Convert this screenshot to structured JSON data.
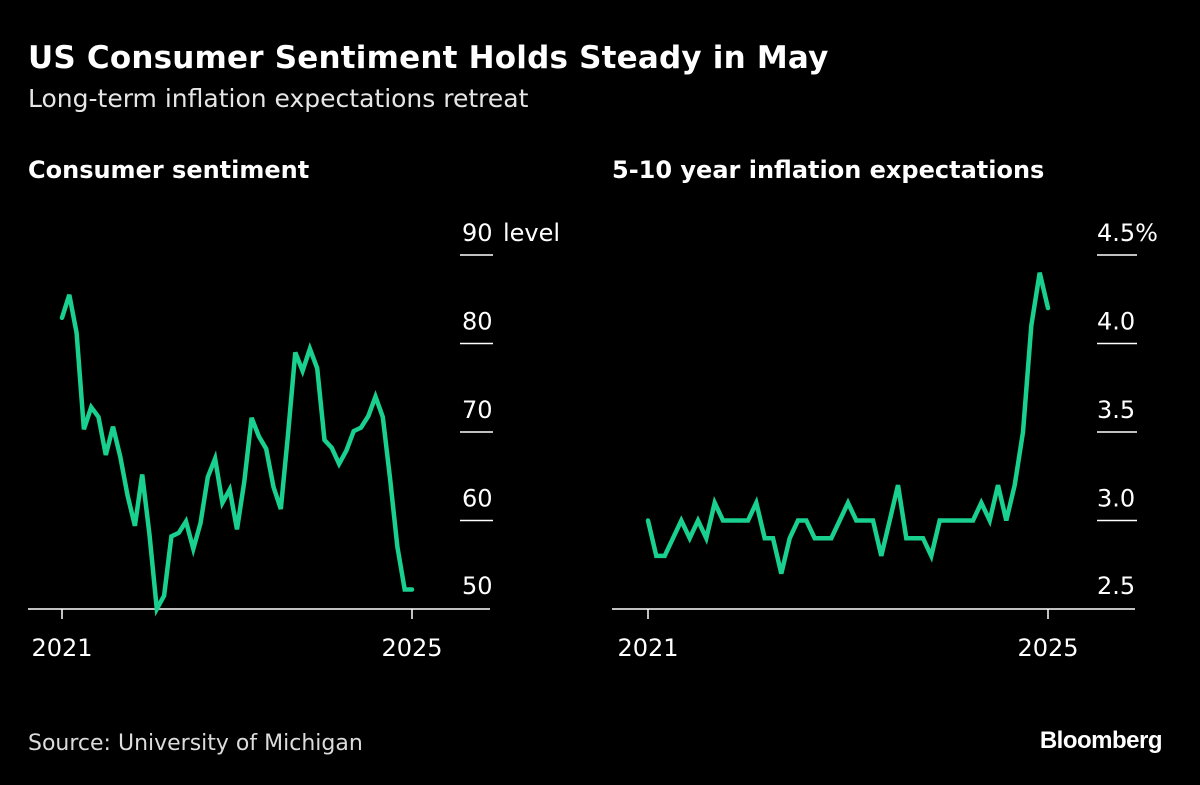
{
  "title": "US Consumer Sentiment Holds Steady in May",
  "subtitle": "Long-term inflation expectations retreat",
  "source": "Source: University of Michigan",
  "logo": "Bloomberg",
  "colors": {
    "line": "#19d08f",
    "background": "#000000",
    "axis": "#ffffff"
  },
  "chart_data": [
    {
      "type": "line",
      "title": "Consumer sentiment",
      "yunit": "level",
      "x_ticks": [
        "2021",
        "2025"
      ],
      "y_ticks": [
        "50",
        "60",
        "70",
        "80",
        "90"
      ],
      "ylim": [
        50,
        90
      ],
      "grid": false,
      "x": [
        "2021-05",
        "2021-06",
        "2021-07",
        "2021-08",
        "2021-09",
        "2021-10",
        "2021-11",
        "2021-12",
        "2022-01",
        "2022-02",
        "2022-03",
        "2022-04",
        "2022-05",
        "2022-06",
        "2022-07",
        "2022-08",
        "2022-09",
        "2022-10",
        "2022-11",
        "2022-12",
        "2023-01",
        "2023-02",
        "2023-03",
        "2023-04",
        "2023-05",
        "2023-06",
        "2023-07",
        "2023-08",
        "2023-09",
        "2023-10",
        "2023-11",
        "2023-12",
        "2024-01",
        "2024-02",
        "2024-03",
        "2024-04",
        "2024-05",
        "2024-06",
        "2024-07",
        "2024-08",
        "2024-09",
        "2024-10",
        "2024-11",
        "2024-12",
        "2025-01",
        "2025-02",
        "2025-03",
        "2025-04",
        "2025-05"
      ],
      "values": [
        82.9,
        85.5,
        81.2,
        70.3,
        72.8,
        71.7,
        67.4,
        70.6,
        67.2,
        62.8,
        59.4,
        65.2,
        58.4,
        50.0,
        51.5,
        58.2,
        58.6,
        59.9,
        56.8,
        59.7,
        64.9,
        67.0,
        62.0,
        63.5,
        59.0,
        64.4,
        71.6,
        69.5,
        68.1,
        63.8,
        61.3,
        69.7,
        79.0,
        76.9,
        79.4,
        77.2,
        69.1,
        68.2,
        66.4,
        67.9,
        70.1,
        70.5,
        71.8,
        74.0,
        71.7,
        64.7,
        57.0,
        52.2,
        52.2
      ]
    },
    {
      "type": "line",
      "title": "5-10 year inflation expectations",
      "yunit": "%",
      "x_ticks": [
        "2021",
        "2025"
      ],
      "y_ticks": [
        "2.5",
        "3.0",
        "3.5",
        "4.0",
        "4.5%"
      ],
      "ylim": [
        2.5,
        4.5
      ],
      "grid": false,
      "x": [
        "2021-05",
        "2021-06",
        "2021-07",
        "2021-08",
        "2021-09",
        "2021-10",
        "2021-11",
        "2021-12",
        "2022-01",
        "2022-02",
        "2022-03",
        "2022-04",
        "2022-05",
        "2022-06",
        "2022-07",
        "2022-08",
        "2022-09",
        "2022-10",
        "2022-11",
        "2022-12",
        "2023-01",
        "2023-02",
        "2023-03",
        "2023-04",
        "2023-05",
        "2023-06",
        "2023-07",
        "2023-08",
        "2023-09",
        "2023-10",
        "2023-11",
        "2023-12",
        "2024-01",
        "2024-02",
        "2024-03",
        "2024-04",
        "2024-05",
        "2024-06",
        "2024-07",
        "2024-08",
        "2024-09",
        "2024-10",
        "2024-11",
        "2024-12",
        "2025-01",
        "2025-02",
        "2025-03",
        "2025-04",
        "2025-05"
      ],
      "values": [
        3.0,
        2.8,
        2.8,
        2.9,
        3.0,
        2.9,
        3.0,
        2.9,
        3.1,
        3.0,
        3.0,
        3.0,
        3.0,
        3.1,
        2.9,
        2.9,
        2.7,
        2.9,
        3.0,
        3.0,
        2.9,
        2.9,
        2.9,
        3.0,
        3.1,
        3.0,
        3.0,
        3.0,
        2.8,
        3.0,
        3.2,
        2.9,
        2.9,
        2.9,
        2.8,
        3.0,
        3.0,
        3.0,
        3.0,
        3.0,
        3.1,
        3.0,
        3.2,
        3.0,
        3.2,
        3.5,
        4.1,
        4.4,
        4.2
      ]
    }
  ]
}
